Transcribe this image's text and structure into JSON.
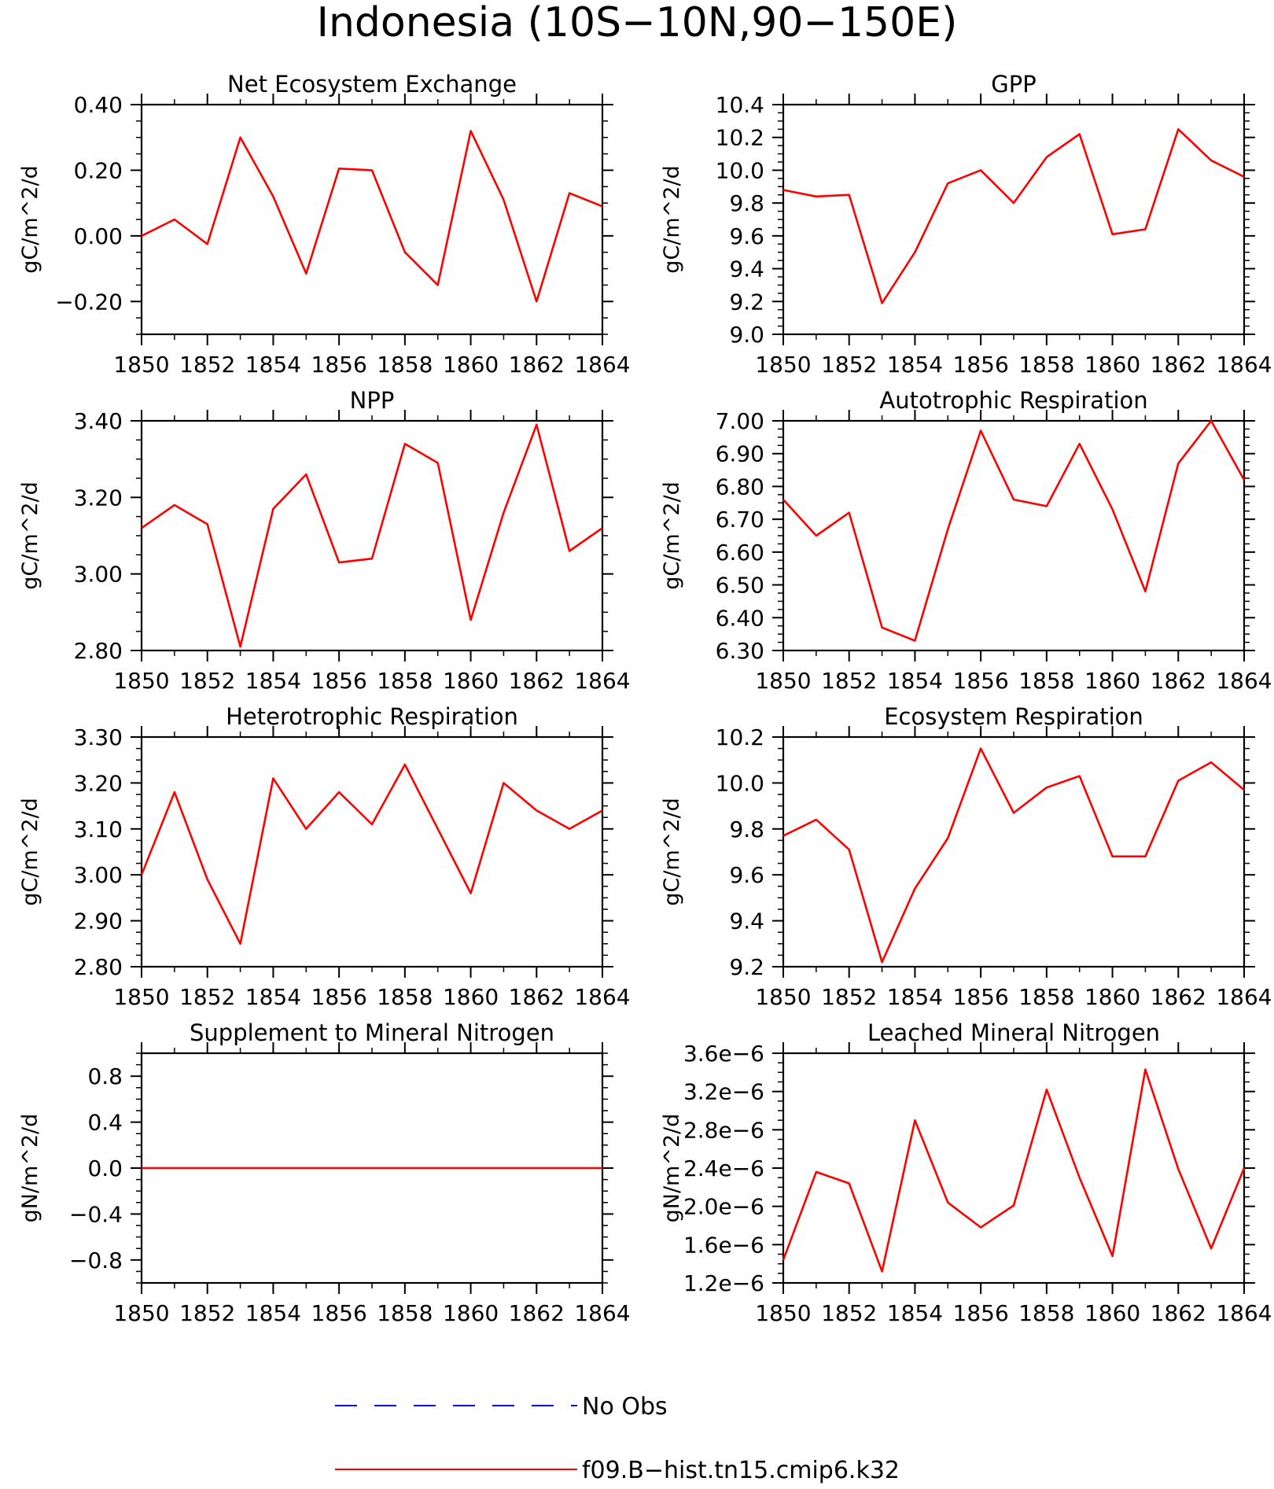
{
  "title": "Indonesia (10S−10N,90−150E)",
  "colors": {
    "model": "#ff0000",
    "obs": "#0000ff",
    "axis": "#000000"
  },
  "legend": [
    {
      "label": "No Obs",
      "style": "dashed",
      "color": "#0000ff"
    },
    {
      "label": "f09.B−hist.tn15.cmip6.k32",
      "style": "solid",
      "color": "#ff0000"
    }
  ],
  "chart_data": [
    {
      "type": "line",
      "title": "Net Ecosystem Exchange",
      "ylabel": "gC/m^2/d",
      "xlim": [
        1850,
        1864
      ],
      "ylim": [
        -0.3,
        0.4
      ],
      "xticks": [
        1850,
        1852,
        1854,
        1856,
        1858,
        1860,
        1862,
        1864
      ],
      "yticks": [
        -0.2,
        0.0,
        0.2,
        0.4
      ],
      "ytick_labels": [
        "−0.20",
        "0.00",
        "0.20",
        "0.40"
      ],
      "yminor": 0.05,
      "x": [
        1850,
        1851,
        1852,
        1853,
        1854,
        1855,
        1856,
        1857,
        1858,
        1859,
        1860,
        1861,
        1862,
        1863,
        1864
      ],
      "series": [
        {
          "values": [
            0.0,
            0.05,
            -0.025,
            0.3,
            0.12,
            -0.115,
            0.205,
            0.2,
            -0.05,
            -0.15,
            0.32,
            0.11,
            -0.2,
            0.13,
            0.09
          ]
        }
      ]
    },
    {
      "type": "line",
      "title": "GPP",
      "ylabel": "gC/m^2/d",
      "xlim": [
        1850,
        1864
      ],
      "ylim": [
        9.0,
        10.4
      ],
      "xticks": [
        1850,
        1852,
        1854,
        1856,
        1858,
        1860,
        1862,
        1864
      ],
      "yticks": [
        9.0,
        9.2,
        9.4,
        9.6,
        9.8,
        10.0,
        10.2,
        10.4
      ],
      "ytick_labels": [
        "9.0",
        "9.2",
        "9.4",
        "9.6",
        "9.8",
        "10.0",
        "10.2",
        "10.4"
      ],
      "yminor": 0.05,
      "x": [
        1850,
        1851,
        1852,
        1853,
        1854,
        1855,
        1856,
        1857,
        1858,
        1859,
        1860,
        1861,
        1862,
        1863,
        1864
      ],
      "series": [
        {
          "values": [
            9.88,
            9.84,
            9.85,
            9.19,
            9.5,
            9.92,
            10.0,
            9.8,
            10.08,
            10.22,
            9.61,
            9.64,
            10.25,
            10.06,
            9.96
          ]
        }
      ]
    },
    {
      "type": "line",
      "title": "NPP",
      "ylabel": "gC/m^2/d",
      "xlim": [
        1850,
        1864
      ],
      "ylim": [
        2.8,
        3.4
      ],
      "xticks": [
        1850,
        1852,
        1854,
        1856,
        1858,
        1860,
        1862,
        1864
      ],
      "yticks": [
        2.8,
        3.0,
        3.2,
        3.4
      ],
      "ytick_labels": [
        "2.80",
        "3.00",
        "3.20",
        "3.40"
      ],
      "yminor": 0.05,
      "x": [
        1850,
        1851,
        1852,
        1853,
        1854,
        1855,
        1856,
        1857,
        1858,
        1859,
        1860,
        1861,
        1862,
        1863,
        1864
      ],
      "series": [
        {
          "values": [
            3.12,
            3.18,
            3.13,
            2.81,
            3.17,
            3.26,
            3.03,
            3.04,
            3.34,
            3.29,
            2.88,
            3.16,
            3.39,
            3.06,
            3.12
          ]
        }
      ]
    },
    {
      "type": "line",
      "title": "Autotrophic Respiration",
      "ylabel": "gC/m^2/d",
      "xlim": [
        1850,
        1864
      ],
      "ylim": [
        6.3,
        7.0
      ],
      "xticks": [
        1850,
        1852,
        1854,
        1856,
        1858,
        1860,
        1862,
        1864
      ],
      "yticks": [
        6.3,
        6.4,
        6.5,
        6.6,
        6.7,
        6.8,
        6.9,
        7.0
      ],
      "ytick_labels": [
        "6.30",
        "6.40",
        "6.50",
        "6.60",
        "6.70",
        "6.80",
        "6.90",
        "7.00"
      ],
      "yminor": 0.025,
      "x": [
        1850,
        1851,
        1852,
        1853,
        1854,
        1855,
        1856,
        1857,
        1858,
        1859,
        1860,
        1861,
        1862,
        1863,
        1864
      ],
      "series": [
        {
          "values": [
            6.76,
            6.65,
            6.72,
            6.37,
            6.33,
            6.67,
            6.97,
            6.76,
            6.74,
            6.93,
            6.73,
            6.48,
            6.87,
            7.0,
            6.82
          ]
        }
      ]
    },
    {
      "type": "line",
      "title": "Heterotrophic Respiration",
      "ylabel": "gC/m^2/d",
      "xlim": [
        1850,
        1864
      ],
      "ylim": [
        2.8,
        3.3
      ],
      "xticks": [
        1850,
        1852,
        1854,
        1856,
        1858,
        1860,
        1862,
        1864
      ],
      "yticks": [
        2.8,
        2.9,
        3.0,
        3.1,
        3.2,
        3.3
      ],
      "ytick_labels": [
        "2.80",
        "2.90",
        "3.00",
        "3.10",
        "3.20",
        "3.30"
      ],
      "yminor": 0.025,
      "x": [
        1850,
        1851,
        1852,
        1853,
        1854,
        1855,
        1856,
        1857,
        1858,
        1859,
        1860,
        1861,
        1862,
        1863,
        1864
      ],
      "series": [
        {
          "values": [
            3.0,
            3.18,
            2.99,
            2.85,
            3.21,
            3.1,
            3.18,
            3.11,
            3.24,
            3.1,
            2.96,
            3.2,
            3.14,
            3.1,
            3.14
          ]
        }
      ]
    },
    {
      "type": "line",
      "title": "Ecosystem Respiration",
      "ylabel": "gC/m^2/d",
      "xlim": [
        1850,
        1864
      ],
      "ylim": [
        9.2,
        10.2
      ],
      "xticks": [
        1850,
        1852,
        1854,
        1856,
        1858,
        1860,
        1862,
        1864
      ],
      "yticks": [
        9.2,
        9.4,
        9.6,
        9.8,
        10.0,
        10.2
      ],
      "ytick_labels": [
        "9.2",
        "9.4",
        "9.6",
        "9.8",
        "10.0",
        "10.2"
      ],
      "yminor": 0.05,
      "x": [
        1850,
        1851,
        1852,
        1853,
        1854,
        1855,
        1856,
        1857,
        1858,
        1859,
        1860,
        1861,
        1862,
        1863,
        1864
      ],
      "series": [
        {
          "values": [
            9.77,
            9.84,
            9.71,
            9.22,
            9.54,
            9.76,
            10.15,
            9.87,
            9.98,
            10.03,
            9.68,
            9.68,
            10.01,
            10.09,
            9.97
          ]
        }
      ]
    },
    {
      "type": "line",
      "title": "Supplement to Mineral Nitrogen",
      "ylabel": "gN/m^2/d",
      "xlim": [
        1850,
        1864
      ],
      "ylim": [
        -1.0,
        1.0
      ],
      "xticks": [
        1850,
        1852,
        1854,
        1856,
        1858,
        1860,
        1862,
        1864
      ],
      "yticks": [
        -0.8,
        -0.4,
        0.0,
        0.4,
        0.8
      ],
      "ytick_labels": [
        "−0.8",
        "−0.4",
        "0.0",
        "0.4",
        "0.8"
      ],
      "yminor": 0.1,
      "x": [
        1850,
        1851,
        1852,
        1853,
        1854,
        1855,
        1856,
        1857,
        1858,
        1859,
        1860,
        1861,
        1862,
        1863,
        1864
      ],
      "series": [
        {
          "values": [
            0,
            0,
            0,
            0,
            0,
            0,
            0,
            0,
            0,
            0,
            0,
            0,
            0,
            0,
            0
          ]
        }
      ]
    },
    {
      "type": "line",
      "title": "Leached Mineral Nitrogen",
      "ylabel": "gN/m^2/d",
      "xlim": [
        1850,
        1864
      ],
      "ylim": [
        1.2e-06,
        3.6e-06
      ],
      "xticks": [
        1850,
        1852,
        1854,
        1856,
        1858,
        1860,
        1862,
        1864
      ],
      "yticks": [
        1.2e-06,
        1.6e-06,
        2e-06,
        2.4e-06,
        2.8e-06,
        3.2e-06,
        3.6e-06
      ],
      "ytick_labels": [
        "1.2e−6",
        "1.6e−6",
        "2.0e−6",
        "2.4e−6",
        "2.8e−6",
        "3.2e−6",
        "3.6e−6"
      ],
      "yminor": 1e-07,
      "x": [
        1850,
        1851,
        1852,
        1853,
        1854,
        1855,
        1856,
        1857,
        1858,
        1859,
        1860,
        1861,
        1862,
        1863,
        1864
      ],
      "series": [
        {
          "values": [
            1.44e-06,
            2.36e-06,
            2.24e-06,
            1.32e-06,
            2.9e-06,
            2.04e-06,
            1.78e-06,
            2.01e-06,
            3.22e-06,
            2.3e-06,
            1.48e-06,
            3.43e-06,
            2.39e-06,
            1.56e-06,
            2.4e-06
          ]
        }
      ]
    }
  ]
}
